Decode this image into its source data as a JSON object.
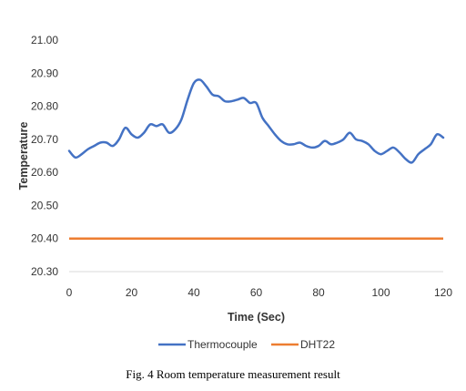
{
  "chart_data": {
    "type": "line",
    "title": "",
    "xlabel": "Time (Sec)",
    "ylabel": "Temperature",
    "xlim": [
      0,
      120
    ],
    "ylim": [
      20.3,
      21.0
    ],
    "x_ticks": [
      "0",
      "20",
      "40",
      "60",
      "80",
      "100",
      "120"
    ],
    "y_ticks": [
      "20.30",
      "20.40",
      "20.50",
      "20.60",
      "20.70",
      "20.80",
      "20.90",
      "21.00"
    ],
    "legend_position": "bottom",
    "grid": false,
    "series": [
      {
        "name": "Thermocouple",
        "color": "#4472C4",
        "x": [
          0,
          2,
          4,
          6,
          8,
          10,
          12,
          14,
          16,
          18,
          20,
          22,
          24,
          26,
          28,
          30,
          32,
          34,
          36,
          38,
          40,
          42,
          44,
          46,
          48,
          50,
          52,
          54,
          56,
          58,
          60,
          62,
          64,
          66,
          68,
          70,
          72,
          74,
          76,
          78,
          80,
          82,
          84,
          86,
          88,
          90,
          92,
          94,
          96,
          98,
          100,
          102,
          104,
          106,
          108,
          110,
          112,
          114,
          116,
          118,
          120
        ],
        "y": [
          20.665,
          20.645,
          20.655,
          20.67,
          20.68,
          20.69,
          20.69,
          20.68,
          20.7,
          20.735,
          20.715,
          20.705,
          20.72,
          20.745,
          20.74,
          20.745,
          20.72,
          20.73,
          20.76,
          20.82,
          20.87,
          20.88,
          20.86,
          20.835,
          20.83,
          20.815,
          20.815,
          20.82,
          20.825,
          20.81,
          20.81,
          20.765,
          20.74,
          20.715,
          20.695,
          20.685,
          20.685,
          20.69,
          20.68,
          20.675,
          20.68,
          20.695,
          20.685,
          20.69,
          20.7,
          20.72,
          20.7,
          20.695,
          20.685,
          20.665,
          20.655,
          20.665,
          20.675,
          20.66,
          20.64,
          20.63,
          20.655,
          20.67,
          20.685,
          20.715,
          20.705
        ]
      },
      {
        "name": "DHT22",
        "color": "#ED7D31",
        "x": [
          0,
          120
        ],
        "y": [
          20.4,
          20.4
        ]
      }
    ]
  },
  "caption": "Fig.  4 Room temperature measurement result"
}
